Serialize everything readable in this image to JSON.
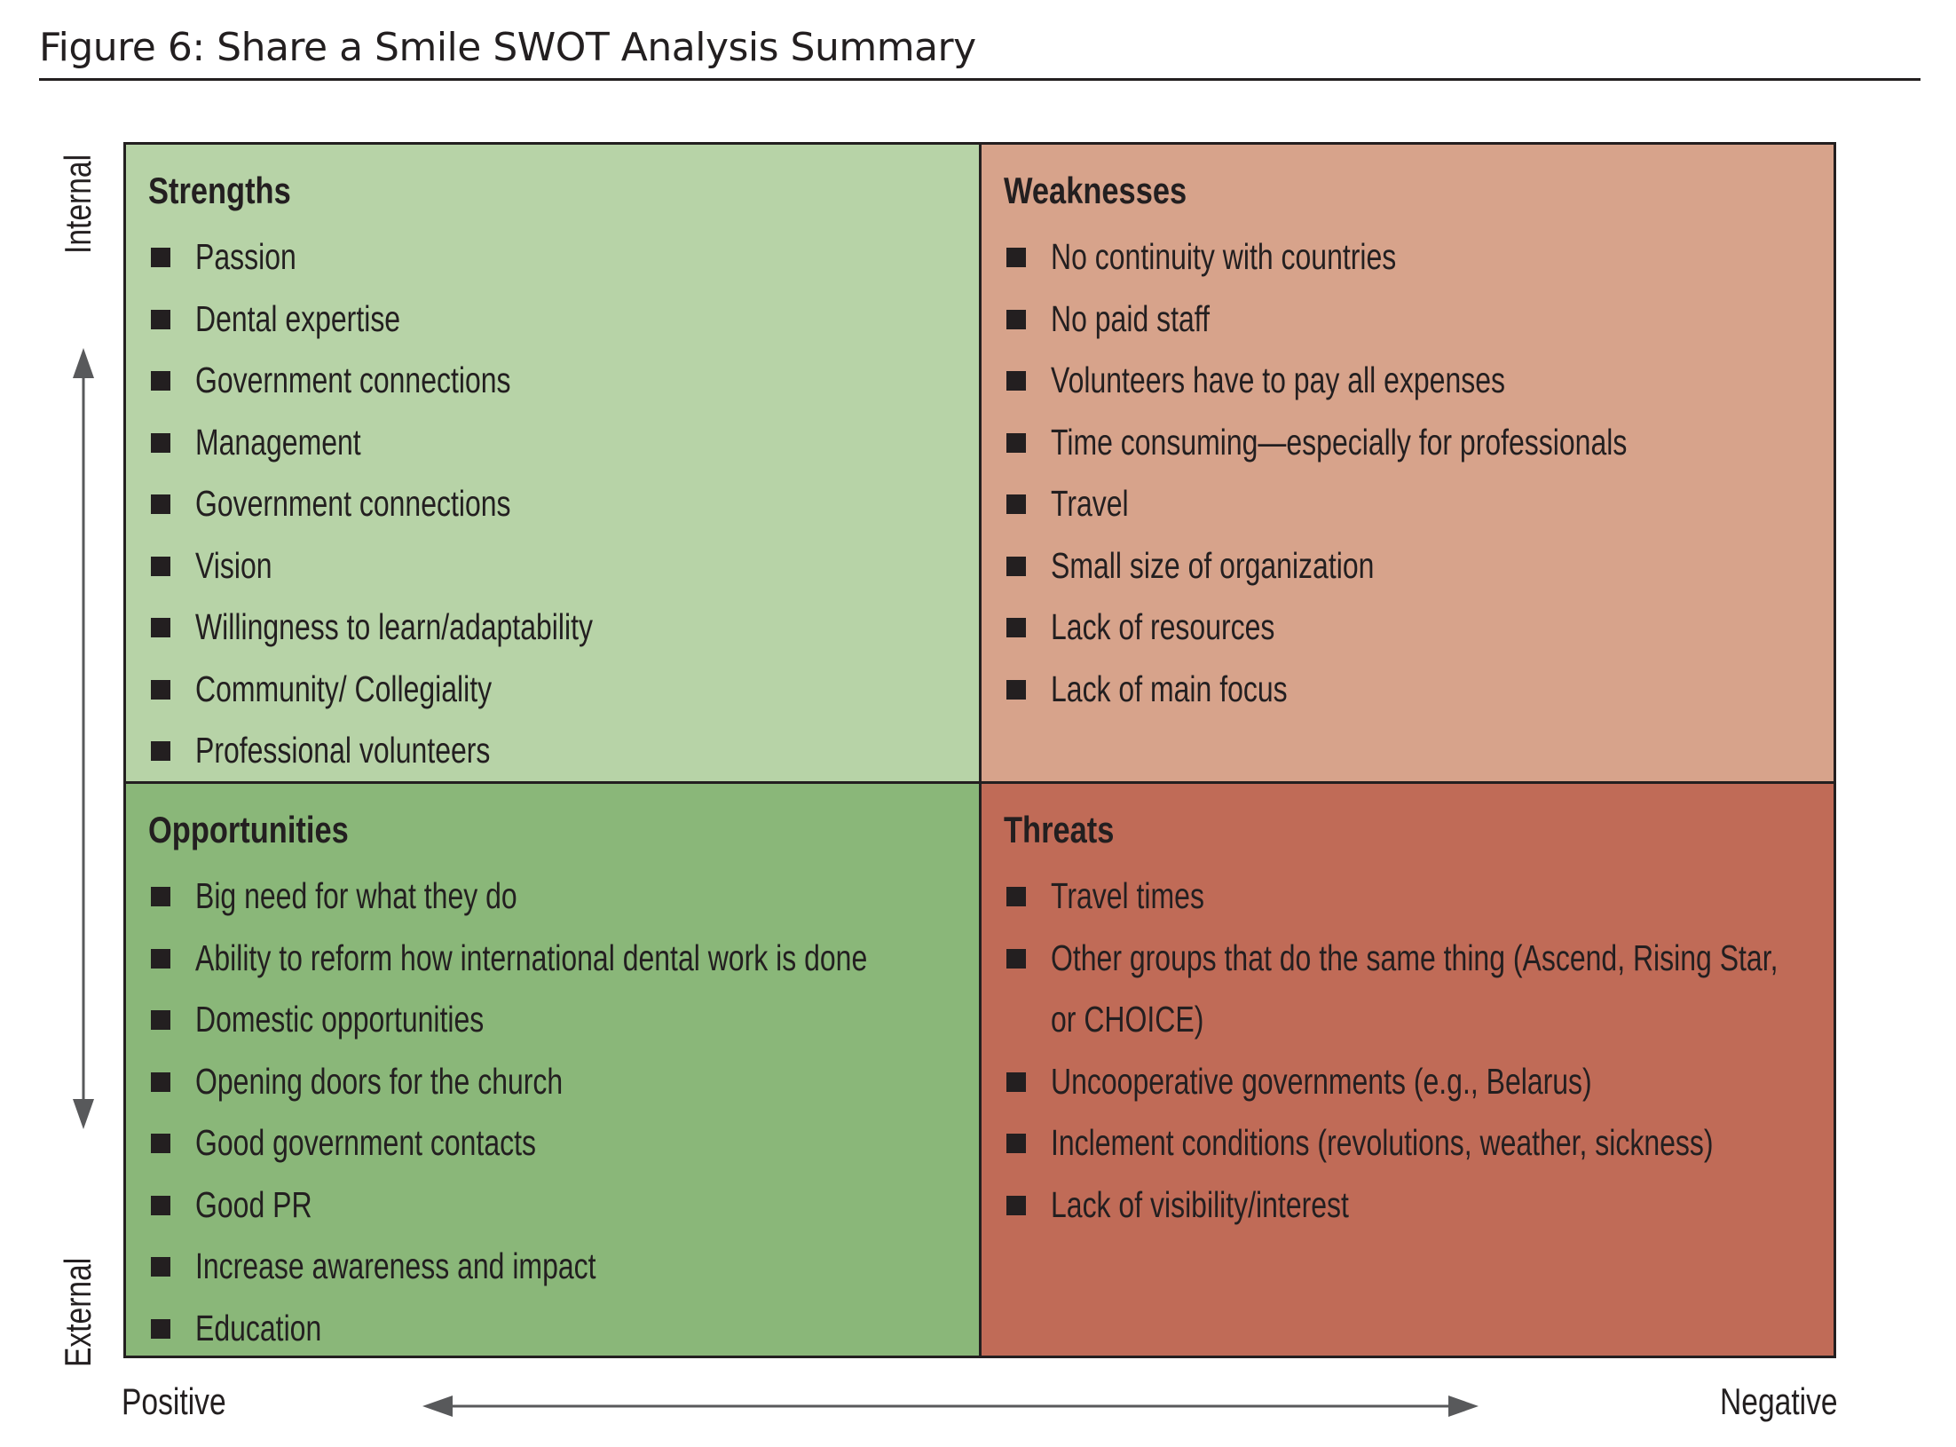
{
  "title": "Figure 6: Share a Smile SWOT Analysis Summary",
  "axes": {
    "vertical_top": "Internal",
    "vertical_bottom": "External",
    "horizontal_left": "Positive",
    "horizontal_right": "Negative"
  },
  "quadrants": {
    "strengths": {
      "title": "Strengths",
      "items": [
        "Passion",
        "Dental expertise",
        "Government connections",
        "Management",
        "Government connections",
        "Vision",
        "Willingness to learn/adaptability",
        "Community/ Collegiality",
        "Professional volunteers"
      ]
    },
    "weaknesses": {
      "title": "Weaknesses",
      "items": [
        "No continuity with countries",
        "No paid staff",
        "Volunteers have to pay all expenses",
        "Time consuming—especially for professionals",
        "Travel",
        "Small size of organization",
        "Lack of resources",
        "Lack of main focus"
      ]
    },
    "opportunities": {
      "title": "Opportunities",
      "items": [
        "Big need for what they do",
        "Ability to reform how international dental work is done",
        "Domestic opportunities",
        "Opening doors for the church",
        "Good government contacts",
        "Good PR",
        "Increase awareness and impact",
        "Education"
      ]
    },
    "threats": {
      "title": "Threats",
      "items": [
        "Travel times",
        "Other groups that do the same thing (Ascend, Rising Star, or CHOICE)",
        "Uncooperative governments (e.g., Belarus)",
        "Inclement conditions (revolutions, weather, sickness)",
        "Lack of visibility/interest"
      ]
    }
  },
  "colors": {
    "strengths": "#b7d3a7",
    "weaknesses": "#d7a38b",
    "opportunities": "#8ab779",
    "threats": "#c06b57"
  }
}
